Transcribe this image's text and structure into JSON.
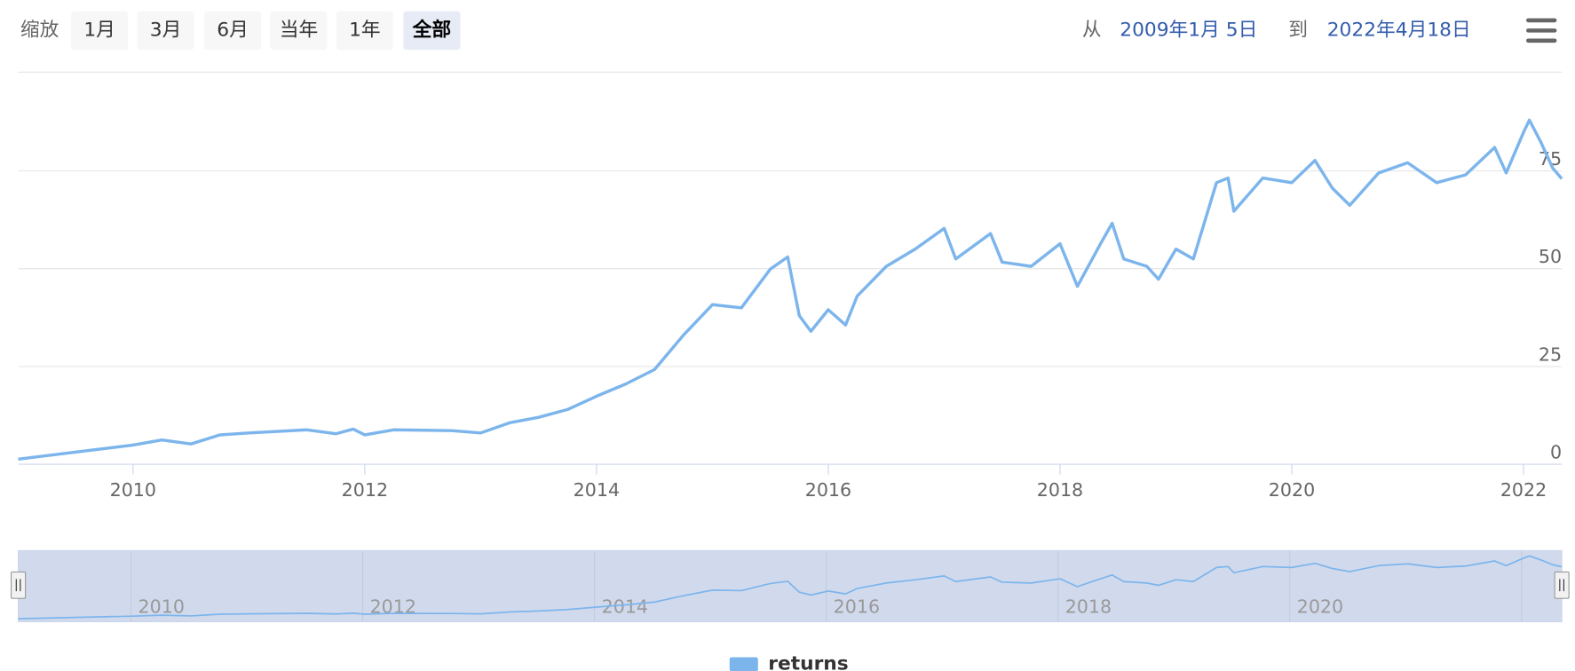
{
  "range_selector": {
    "zoom_label": "缩放",
    "buttons": [
      "1月",
      "3月",
      "6月",
      "当年",
      "1年",
      "全部"
    ],
    "selected": 5,
    "from_label": "从",
    "from": "2009年1月 5日",
    "to_label": "到",
    "to": "2022年4月18日"
  },
  "chart_data": {
    "type": "line",
    "x": [
      2009.01,
      2009.5,
      2010.0,
      2010.25,
      2010.5,
      2010.75,
      2011.0,
      2011.5,
      2011.75,
      2011.9,
      2012.0,
      2012.25,
      2012.75,
      2013.0,
      2013.25,
      2013.5,
      2013.75,
      2014.0,
      2014.25,
      2014.5,
      2014.75,
      2015.0,
      2015.25,
      2015.5,
      2015.65,
      2015.75,
      2015.85,
      2016.0,
      2016.15,
      2016.25,
      2016.5,
      2016.75,
      2017.0,
      2017.1,
      2017.4,
      2017.5,
      2017.75,
      2018.0,
      2018.15,
      2018.35,
      2018.45,
      2018.55,
      2018.75,
      2018.85,
      2019.0,
      2019.15,
      2019.35,
      2019.45,
      2019.5,
      2019.75,
      2020.0,
      2020.2,
      2020.35,
      2020.5,
      2020.75,
      2021.0,
      2021.25,
      2021.5,
      2021.75,
      2021.85,
      2022.0,
      2022.05,
      2022.15,
      2022.25,
      2022.33
    ],
    "series": [
      {
        "name": "returns",
        "color": "#7cb5ec",
        "values": [
          1.3,
          3.1,
          4.9,
          6.2,
          5.2,
          7.5,
          8.0,
          8.8,
          7.8,
          9.0,
          7.5,
          8.8,
          8.6,
          8.0,
          10.6,
          12.0,
          14.0,
          17.4,
          20.5,
          24.2,
          33.0,
          40.8,
          40.0,
          49.9,
          53.0,
          38.0,
          34.0,
          39.5,
          35.6,
          43.0,
          50.6,
          55.0,
          60.3,
          52.5,
          59.0,
          51.7,
          50.6,
          56.4,
          45.5,
          56.4,
          61.6,
          52.5,
          50.6,
          47.3,
          55.0,
          52.5,
          72.0,
          73.2,
          64.7,
          73.2,
          72.0,
          77.7,
          70.6,
          66.2,
          74.5,
          77.1,
          72.0,
          74.0,
          81.0,
          74.5,
          84.9,
          88.0,
          82.3,
          75.8,
          73.0
        ]
      }
    ],
    "xlim": [
      2009.01,
      2022.33
    ],
    "xticks": [
      2010,
      2012,
      2014,
      2016,
      2018,
      2020,
      2022
    ],
    "ylim": [
      0,
      100
    ],
    "yticks": [
      0,
      25,
      50,
      75
    ],
    "grid": true,
    "legend": "bottom"
  }
}
